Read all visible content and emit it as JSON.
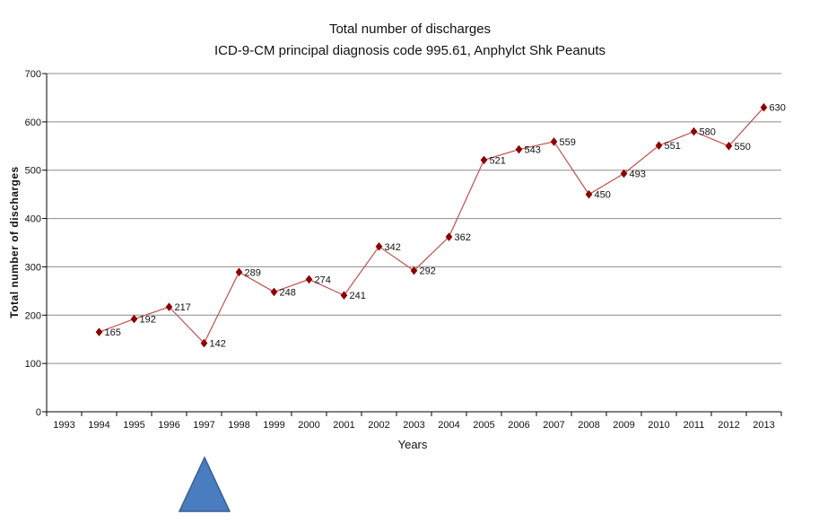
{
  "chart_data": {
    "type": "line",
    "title": "Total number of discharges",
    "subtitle": "ICD-9-CM principal diagnosis code 995.61, Anphylct Shk Peanuts",
    "xlabel": "Years",
    "ylabel": "Total number of discharges",
    "categories": [
      "1993",
      "1994",
      "1995",
      "1996",
      "1997",
      "1998",
      "1999",
      "2000",
      "2001",
      "2002",
      "2003",
      "2004",
      "2005",
      "2006",
      "2007",
      "2008",
      "2009",
      "2010",
      "2011",
      "2012",
      "2013"
    ],
    "series": [
      {
        "name": "Total number of discharges",
        "color": "#c0504d",
        "marker_color": "#8b0000",
        "x": [
          "1994",
          "1995",
          "1996",
          "1997",
          "1998",
          "1999",
          "2000",
          "2001",
          "2002",
          "2003",
          "2004",
          "2005",
          "2006",
          "2007",
          "2008",
          "2009",
          "2010",
          "2011",
          "2012",
          "2013"
        ],
        "values": [
          165,
          192,
          217,
          142,
          289,
          248,
          274,
          241,
          342,
          292,
          362,
          521,
          543,
          559,
          450,
          493,
          551,
          580,
          550,
          630
        ]
      }
    ],
    "ylim": [
      0,
      700
    ],
    "yticks": [
      0,
      100,
      200,
      300,
      400,
      500,
      600,
      700
    ],
    "grid": true,
    "legend": "none"
  },
  "annotation": {
    "shape": "triangle",
    "color": "#4a7cc0",
    "points_to": "1997"
  }
}
